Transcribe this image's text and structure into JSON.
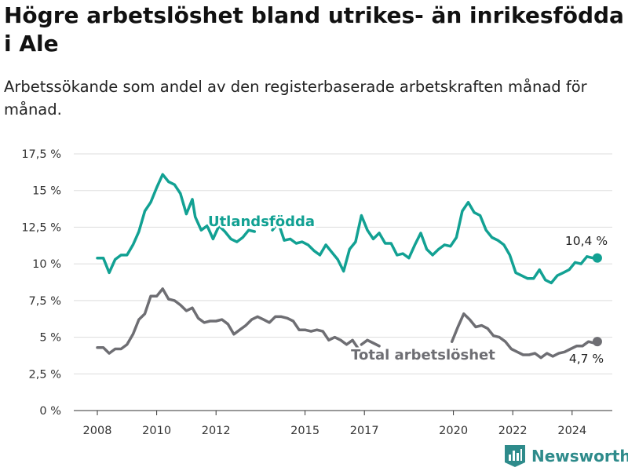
{
  "header": {
    "title": "Högre arbetslöshet bland utrikes- än inrikesfödda i Ale",
    "subtitle": "Arbetssökande som andel av den registerbaserade arbetskraften månad för månad."
  },
  "brand": {
    "name": "Newsworthy",
    "icon": "bar-chart-logo-icon"
  },
  "colors": {
    "foreign": "#12a193",
    "total": "#6e6e73",
    "grid": "#dddddd",
    "brand": "#2e8b8b"
  },
  "chart_data": {
    "type": "line",
    "y_ticks": [
      "0 %",
      "2,5 %",
      "5 %",
      "7,5 %",
      "10 %",
      "12,5 %",
      "15 %",
      "17,5 %"
    ],
    "y_tick_values": [
      0,
      2.5,
      5,
      7.5,
      10,
      12.5,
      15,
      17.5
    ],
    "x_ticks": [
      "2008",
      "2010",
      "2012",
      "2015",
      "2017",
      "2020",
      "2022",
      "2024"
    ],
    "x_tick_values": [
      2008,
      2010,
      2012,
      2015,
      2017,
      2020,
      2022,
      2024
    ],
    "xlim": [
      2008,
      2025.3
    ],
    "ylim": [
      0,
      17.5
    ],
    "grid": "horizontal",
    "series": [
      {
        "name": "Utlandsfödda",
        "end_label": "10,4 %",
        "segments": [
          [
            [
              2008.0,
              10.4
            ],
            [
              2008.2,
              10.4
            ],
            [
              2008.4,
              9.4
            ],
            [
              2008.6,
              10.3
            ],
            [
              2008.8,
              10.6
            ],
            [
              2009.0,
              10.6
            ],
            [
              2009.2,
              11.3
            ],
            [
              2009.4,
              12.2
            ],
            [
              2009.6,
              13.6
            ],
            [
              2009.8,
              14.2
            ],
            [
              2010.0,
              15.2
            ],
            [
              2010.2,
              16.1
            ],
            [
              2010.4,
              15.6
            ],
            [
              2010.6,
              15.4
            ],
            [
              2010.8,
              14.8
            ],
            [
              2011.0,
              13.4
            ],
            [
              2011.2,
              14.4
            ],
            [
              2011.3,
              13.2
            ],
            [
              2011.5,
              12.3
            ],
            [
              2011.7,
              12.6
            ],
            [
              2011.9,
              11.7
            ],
            [
              2012.1,
              12.6
            ],
            [
              2012.3,
              12.2
            ],
            [
              2012.5,
              11.7
            ],
            [
              2012.7,
              11.5
            ],
            [
              2012.9,
              11.8
            ],
            [
              2013.1,
              12.3
            ],
            [
              2013.3,
              12.2
            ]
          ],
          [
            [
              2013.9,
              12.3
            ],
            [
              2014.1,
              12.8
            ],
            [
              2014.3,
              11.6
            ],
            [
              2014.5,
              11.7
            ],
            [
              2014.7,
              11.4
            ],
            [
              2014.9,
              11.5
            ],
            [
              2015.1,
              11.3
            ],
            [
              2015.3,
              10.9
            ],
            [
              2015.5,
              10.6
            ],
            [
              2015.7,
              11.3
            ],
            [
              2015.9,
              10.8
            ],
            [
              2016.1,
              10.3
            ],
            [
              2016.3,
              9.5
            ],
            [
              2016.5,
              11.0
            ],
            [
              2016.7,
              11.5
            ],
            [
              2016.9,
              13.3
            ],
            [
              2017.1,
              12.3
            ],
            [
              2017.3,
              11.7
            ],
            [
              2017.5,
              12.1
            ],
            [
              2017.7,
              11.4
            ],
            [
              2017.9,
              11.4
            ],
            [
              2018.1,
              10.6
            ],
            [
              2018.3,
              10.7
            ],
            [
              2018.5,
              10.4
            ],
            [
              2018.7,
              11.3
            ],
            [
              2018.9,
              12.1
            ],
            [
              2019.1,
              11.0
            ],
            [
              2019.3,
              10.6
            ],
            [
              2019.5,
              11.0
            ],
            [
              2019.7,
              11.3
            ],
            [
              2019.9,
              11.2
            ],
            [
              2020.1,
              11.8
            ],
            [
              2020.3,
              13.6
            ],
            [
              2020.5,
              14.2
            ],
            [
              2020.7,
              13.5
            ],
            [
              2020.9,
              13.3
            ],
            [
              2021.1,
              12.3
            ],
            [
              2021.3,
              11.8
            ],
            [
              2021.5,
              11.6
            ],
            [
              2021.7,
              11.3
            ],
            [
              2021.9,
              10.6
            ],
            [
              2022.1,
              9.4
            ],
            [
              2022.3,
              9.2
            ],
            [
              2022.5,
              9.0
            ],
            [
              2022.7,
              9.0
            ],
            [
              2022.9,
              9.6
            ],
            [
              2023.1,
              8.9
            ],
            [
              2023.3,
              8.7
            ],
            [
              2023.5,
              9.2
            ],
            [
              2023.7,
              9.4
            ],
            [
              2023.9,
              9.6
            ],
            [
              2024.1,
              10.1
            ],
            [
              2024.3,
              10.0
            ],
            [
              2024.5,
              10.5
            ],
            [
              2024.7,
              10.4
            ],
            [
              2024.85,
              10.4
            ]
          ]
        ]
      },
      {
        "name": "Total arbetslöshet",
        "end_label": "4,7 %",
        "segments": [
          [
            [
              2008.0,
              4.3
            ],
            [
              2008.2,
              4.3
            ],
            [
              2008.4,
              3.9
            ],
            [
              2008.6,
              4.2
            ],
            [
              2008.8,
              4.2
            ],
            [
              2009.0,
              4.5
            ],
            [
              2009.2,
              5.2
            ],
            [
              2009.4,
              6.2
            ],
            [
              2009.6,
              6.6
            ],
            [
              2009.8,
              7.8
            ],
            [
              2010.0,
              7.8
            ],
            [
              2010.2,
              8.3
            ],
            [
              2010.4,
              7.6
            ],
            [
              2010.6,
              7.5
            ],
            [
              2010.8,
              7.2
            ],
            [
              2011.0,
              6.8
            ],
            [
              2011.2,
              7.0
            ],
            [
              2011.4,
              6.3
            ],
            [
              2011.6,
              6.0
            ],
            [
              2011.8,
              6.1
            ],
            [
              2012.0,
              6.1
            ],
            [
              2012.2,
              6.2
            ],
            [
              2012.4,
              5.9
            ],
            [
              2012.6,
              5.2
            ],
            [
              2012.8,
              5.5
            ],
            [
              2013.0,
              5.8
            ],
            [
              2013.2,
              6.2
            ],
            [
              2013.4,
              6.4
            ],
            [
              2013.6,
              6.2
            ],
            [
              2013.8,
              6.0
            ],
            [
              2014.0,
              6.4
            ],
            [
              2014.2,
              6.4
            ],
            [
              2014.4,
              6.3
            ],
            [
              2014.6,
              6.1
            ],
            [
              2014.8,
              5.5
            ],
            [
              2015.0,
              5.5
            ],
            [
              2015.2,
              5.4
            ],
            [
              2015.4,
              5.5
            ],
            [
              2015.6,
              5.4
            ],
            [
              2015.8,
              4.8
            ],
            [
              2016.0,
              5.0
            ],
            [
              2016.2,
              4.8
            ],
            [
              2016.4,
              4.5
            ],
            [
              2016.6,
              4.8
            ],
            [
              2016.8,
              4.2
            ]
          ],
          [
            [
              2016.9,
              4.5
            ],
            [
              2017.1,
              4.8
            ],
            [
              2017.3,
              4.6
            ],
            [
              2017.5,
              4.4
            ]
          ],
          [
            [
              2019.95,
              4.7
            ],
            [
              2020.15,
              5.7
            ],
            [
              2020.35,
              6.6
            ],
            [
              2020.55,
              6.2
            ],
            [
              2020.75,
              5.7
            ],
            [
              2020.95,
              5.8
            ],
            [
              2021.15,
              5.6
            ],
            [
              2021.35,
              5.1
            ],
            [
              2021.55,
              5.0
            ],
            [
              2021.75,
              4.7
            ],
            [
              2021.95,
              4.2
            ],
            [
              2022.15,
              4.0
            ],
            [
              2022.35,
              3.8
            ],
            [
              2022.55,
              3.8
            ],
            [
              2022.75,
              3.9
            ],
            [
              2022.95,
              3.6
            ],
            [
              2023.15,
              3.9
            ],
            [
              2023.35,
              3.7
            ],
            [
              2023.55,
              3.9
            ],
            [
              2023.75,
              4.0
            ],
            [
              2023.95,
              4.2
            ],
            [
              2024.15,
              4.4
            ],
            [
              2024.35,
              4.4
            ],
            [
              2024.55,
              4.7
            ],
            [
              2024.75,
              4.6
            ],
            [
              2024.85,
              4.7
            ]
          ]
        ]
      }
    ]
  }
}
